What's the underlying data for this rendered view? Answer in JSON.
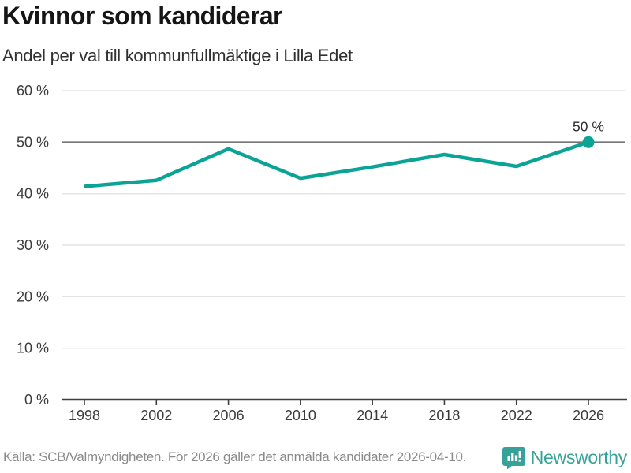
{
  "header": {
    "title": "Kvinnor som kandiderar",
    "subtitle": "Andel per val till kommunfullmäktige i Lilla Edet"
  },
  "chart_data": {
    "type": "line",
    "title": "Kvinnor som kandiderar",
    "subtitle": "Andel per val till kommunfullmäktige i Lilla Edet",
    "categories": [
      "1998",
      "2002",
      "2006",
      "2010",
      "2014",
      "2018",
      "2022",
      "2026"
    ],
    "values": [
      41.4,
      42.6,
      48.7,
      43.0,
      45.2,
      47.6,
      45.3,
      50.0
    ],
    "ylim": [
      0,
      60
    ],
    "yticks": [
      0,
      10,
      20,
      30,
      40,
      50,
      60
    ],
    "ytick_labels": [
      "0 %",
      "10 %",
      "20 %",
      "30 %",
      "40 %",
      "50 %",
      "60 %"
    ],
    "emphasized_gridline": 50,
    "grid": true,
    "legend": "none",
    "last_point_label": "50 %",
    "marker_on_last_point": true
  },
  "colors": {
    "line": "#0aa396",
    "marker": "#0aa396",
    "grid_light": "#e3e3e3",
    "grid_emphasis": "#757575",
    "axis": "#3f3f3f",
    "tick_text": "#3a3a3a",
    "label_text": "#2b2b2b",
    "brand_teal": "#38a29a"
  },
  "footer": {
    "source": "Källa: SCB/Valmyndigheten. För 2026 gäller det anmälda kandidater 2026-04-10.",
    "brand": "Newsworthy"
  }
}
